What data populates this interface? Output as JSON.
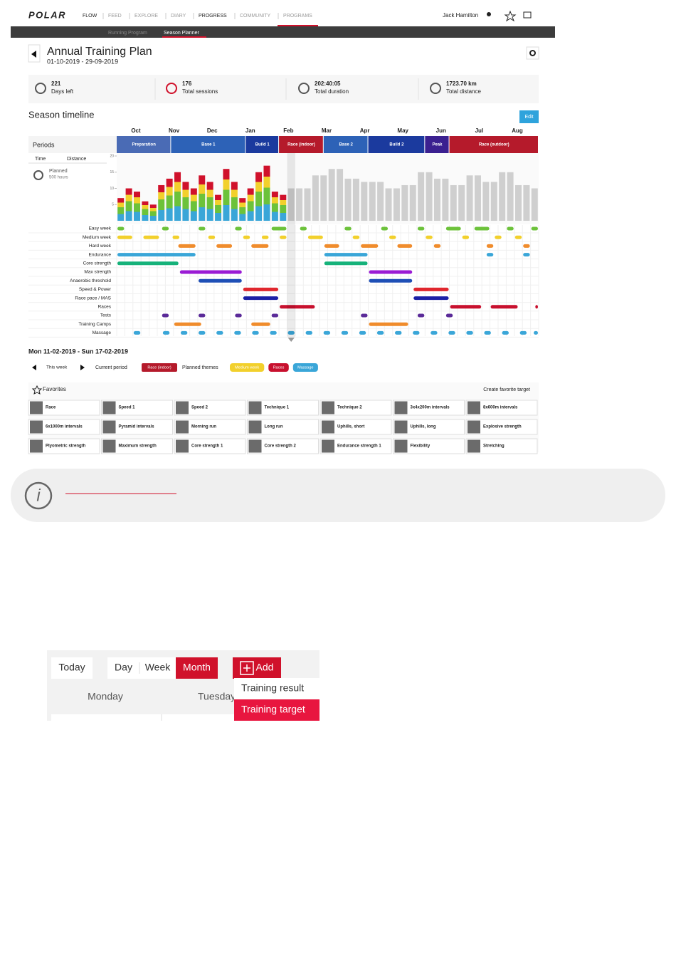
{
  "nav": {
    "brand": "POLAR",
    "items": [
      "FLOW",
      "FEED",
      "EXPLORE",
      "DIARY",
      "PROGRESS",
      "COMMUNITY",
      "PROGRAMS"
    ],
    "user": "Jack Hamilton"
  },
  "subnav": [
    "Running Program",
    "Season Planner"
  ],
  "plan": {
    "title": "Annual Training Plan",
    "dates": "01-10-2019 - 29-09-2019"
  },
  "stats": [
    {
      "value": "221",
      "label": "Days left"
    },
    {
      "value": "176",
      "label": "Total sessions"
    },
    {
      "value": "202:40:05",
      "label": "Total duration"
    },
    {
      "value": "1723.70 km",
      "label": "Total distance"
    }
  ],
  "timeline": {
    "title": "Season timeline",
    "edit": "Edit",
    "months": [
      "Oct",
      "Nov",
      "Dec",
      "Jan",
      "Feb",
      "Mar",
      "Apr",
      "May",
      "Jun",
      "Jul",
      "Aug"
    ],
    "periods_label": "Periods",
    "phases": [
      {
        "name": "Preparation",
        "start": 0,
        "end": 6.7,
        "color": "#4a6bb5"
      },
      {
        "name": "Base 1",
        "start": 6.7,
        "end": 15.9,
        "color": "#2d62b7"
      },
      {
        "name": "Build 1",
        "start": 15.9,
        "end": 20,
        "color": "#1b3a9e"
      },
      {
        "name": "Race (indoor)",
        "start": 20,
        "end": 25.5,
        "color": "#b51a2b"
      },
      {
        "name": "Base 2",
        "start": 25.5,
        "end": 31,
        "color": "#2d62b7"
      },
      {
        "name": "Build 2",
        "start": 31,
        "end": 38,
        "color": "#1b3a9e"
      },
      {
        "name": "Peak",
        "start": 38,
        "end": 41,
        "color": "#3b2090"
      },
      {
        "name": "Race (outdoor)",
        "start": 41,
        "end": 52,
        "color": "#b51a2b"
      }
    ],
    "tabs": [
      "Time",
      "Distance"
    ],
    "planned": "Planned",
    "planned_hours": "500 hours",
    "chart": {
      "type": "bar",
      "xlim": [
        0,
        52
      ],
      "ylim": [
        0,
        20
      ],
      "yticks": [
        5,
        10,
        15,
        20
      ],
      "values": [
        7,
        10,
        9,
        6,
        5,
        11,
        13,
        15,
        12,
        10,
        14,
        12,
        8,
        16,
        12,
        7,
        10,
        15,
        17,
        9,
        8,
        10,
        10,
        10,
        14,
        14,
        16,
        16,
        13,
        13,
        12,
        12,
        12,
        10,
        10,
        11,
        11,
        15,
        15,
        13,
        13,
        11,
        11,
        14,
        14,
        12,
        12,
        15,
        15,
        11,
        11,
        10
      ]
    },
    "selected_week": 21,
    "themes": [
      {
        "name": "Easy week",
        "color": "#6cc23a",
        "segments": [
          [
            0,
            1
          ],
          [
            5.5,
            6.5
          ],
          [
            10,
            11
          ],
          [
            14.5,
            15.5
          ],
          [
            19,
            21
          ],
          [
            22.5,
            23.5
          ],
          [
            28,
            29
          ],
          [
            32.5,
            33.5
          ],
          [
            37,
            38
          ],
          [
            40.5,
            42.5
          ],
          [
            44,
            46
          ],
          [
            48,
            49
          ],
          [
            51,
            52
          ]
        ]
      },
      {
        "name": "Medium week",
        "color": "#f2d02c",
        "segments": [
          [
            0,
            2
          ],
          [
            3.2,
            5.3
          ],
          [
            6.8,
            7.8
          ],
          [
            11.2,
            12.2
          ],
          [
            15.5,
            16.5
          ],
          [
            17.8,
            18.8
          ],
          [
            20,
            21
          ],
          [
            23.5,
            25.5
          ],
          [
            29,
            30
          ],
          [
            33.5,
            34.5
          ],
          [
            38,
            39
          ],
          [
            42.5,
            43.5
          ],
          [
            46.5,
            47.5
          ],
          [
            49,
            50
          ]
        ]
      },
      {
        "name": "Hard week",
        "color": "#f08c2c",
        "segments": [
          [
            7.5,
            9.8
          ],
          [
            12.2,
            14.3
          ],
          [
            16.5,
            18.8
          ],
          [
            25.5,
            27.5
          ],
          [
            30,
            32.3
          ],
          [
            34.5,
            36.5
          ],
          [
            39,
            40
          ],
          [
            45.5,
            46.5
          ],
          [
            50,
            51
          ]
        ]
      },
      {
        "name": "Endurance",
        "color": "#3aa6d8",
        "segments": [
          [
            0,
            9.8
          ],
          [
            25.5,
            31
          ],
          [
            45.5,
            46.5
          ],
          [
            50,
            51
          ]
        ]
      },
      {
        "name": "Core strength",
        "color": "#16b27a",
        "segments": [
          [
            0,
            7.7
          ],
          [
            25.5,
            31
          ]
        ]
      },
      {
        "name": "Max strength",
        "color": "#9a1bd4",
        "segments": [
          [
            7.7,
            15.5
          ],
          [
            31,
            36.5
          ]
        ]
      },
      {
        "name": "Anaerobic threshold",
        "color": "#1e4fb6",
        "segments": [
          [
            10,
            15.5
          ],
          [
            31,
            36.5
          ]
        ]
      },
      {
        "name": "Speed & Power",
        "color": "#e0262d",
        "segments": [
          [
            15.5,
            20
          ],
          [
            36.5,
            41
          ]
        ]
      },
      {
        "name": "Race pace / MAS",
        "color": "#1a1fa6",
        "segments": [
          [
            15.5,
            20
          ],
          [
            36.5,
            41
          ]
        ]
      },
      {
        "name": "Races",
        "color": "#c8102e",
        "segments": [
          [
            20,
            24.5
          ],
          [
            41,
            45
          ],
          [
            46,
            49.5
          ],
          [
            51.5,
            52
          ]
        ]
      },
      {
        "name": "Tests",
        "color": "#5a2a98",
        "segments": [
          [
            5.5,
            6.5
          ],
          [
            10,
            11
          ],
          [
            14.5,
            15.5
          ],
          [
            19,
            20
          ],
          [
            30,
            31
          ],
          [
            37,
            38
          ],
          [
            40.5,
            41.5
          ]
        ]
      },
      {
        "name": "Training Camps",
        "color": "#f08c2c",
        "segments": [
          [
            7,
            10.5
          ],
          [
            16.5,
            19
          ],
          [
            31,
            36
          ]
        ]
      },
      {
        "name": "Massage",
        "color": "#3aa6d8",
        "segments": [
          [
            2,
            3
          ],
          [
            5.6,
            6.6
          ],
          [
            7.8,
            8.8
          ],
          [
            10,
            11
          ],
          [
            12.2,
            13.2
          ],
          [
            14.4,
            15.4
          ],
          [
            16.6,
            17.6
          ],
          [
            18.8,
            19.8
          ],
          [
            21,
            22
          ],
          [
            23.2,
            24.2
          ],
          [
            25.4,
            26.4
          ],
          [
            27.6,
            28.6
          ],
          [
            29.8,
            30.8
          ],
          [
            32,
            33
          ],
          [
            34.2,
            35.2
          ],
          [
            36.4,
            37.4
          ],
          [
            38.6,
            39.6
          ],
          [
            40.8,
            41.8
          ],
          [
            43,
            44
          ],
          [
            45.2,
            46.2
          ],
          [
            47.4,
            48.4
          ],
          [
            49.6,
            50.6
          ],
          [
            51.3,
            52
          ]
        ]
      }
    ]
  },
  "week": {
    "range": "Mon 11-02-2019 - Sun 17-02-2019",
    "this_week": "This week",
    "current_period": "Current period",
    "current_period_badge": "Race (indoor)",
    "planned_themes": "Planned themes",
    "theme_badges": [
      {
        "name": "Medium week",
        "color": "#f2d02c"
      },
      {
        "name": "Races",
        "color": "#c8102e"
      },
      {
        "name": "Massage",
        "color": "#3aa6d8"
      }
    ]
  },
  "favorites": {
    "title": "Favorites",
    "create": "Create favorite target",
    "items": [
      "Race",
      "Speed 1",
      "Speed 2",
      "Technique 1",
      "Technique 2",
      "3x4x200m intervals",
      "8x600m intervals",
      "6x1000m intervals",
      "Pyramid intervals",
      "Morning run",
      "Long run",
      "Uphills, short",
      "Uphills, long",
      "Explosive strength",
      "Plyometric strength",
      "Maximum strength",
      "Core strength 1",
      "Core strength 2",
      "Endurance strength 1",
      "Flexibility",
      "Stretching"
    ]
  },
  "calendar": {
    "today": "Today",
    "views": [
      "Day",
      "Week",
      "Month"
    ],
    "add": "Add",
    "days": [
      "Monday",
      "Tuesday"
    ],
    "menu": [
      "Training result",
      "Training target"
    ]
  }
}
